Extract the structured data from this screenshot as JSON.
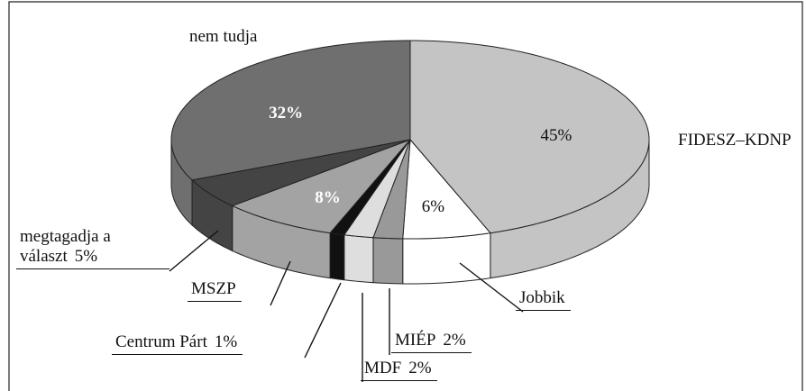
{
  "chart_data": {
    "type": "pie3d",
    "categories": [
      "FIDESZ–KDNP",
      "Jobbik",
      "MIÉP",
      "MDF",
      "Centrum Párt",
      "MSZP",
      "megtagadja a választ",
      "nem tudja"
    ],
    "values": [
      45,
      6,
      2,
      2,
      1,
      8,
      5,
      32
    ],
    "value_labels": [
      "45%",
      "6%",
      "2%",
      "2%",
      "1%",
      "8%",
      "5%",
      "32%"
    ],
    "colors": [
      "#c4c4c4",
      "#ffffff",
      "#999999",
      "#dedede",
      "#111111",
      "#a3a3a3",
      "#444444",
      "#6f6f6f"
    ]
  }
}
